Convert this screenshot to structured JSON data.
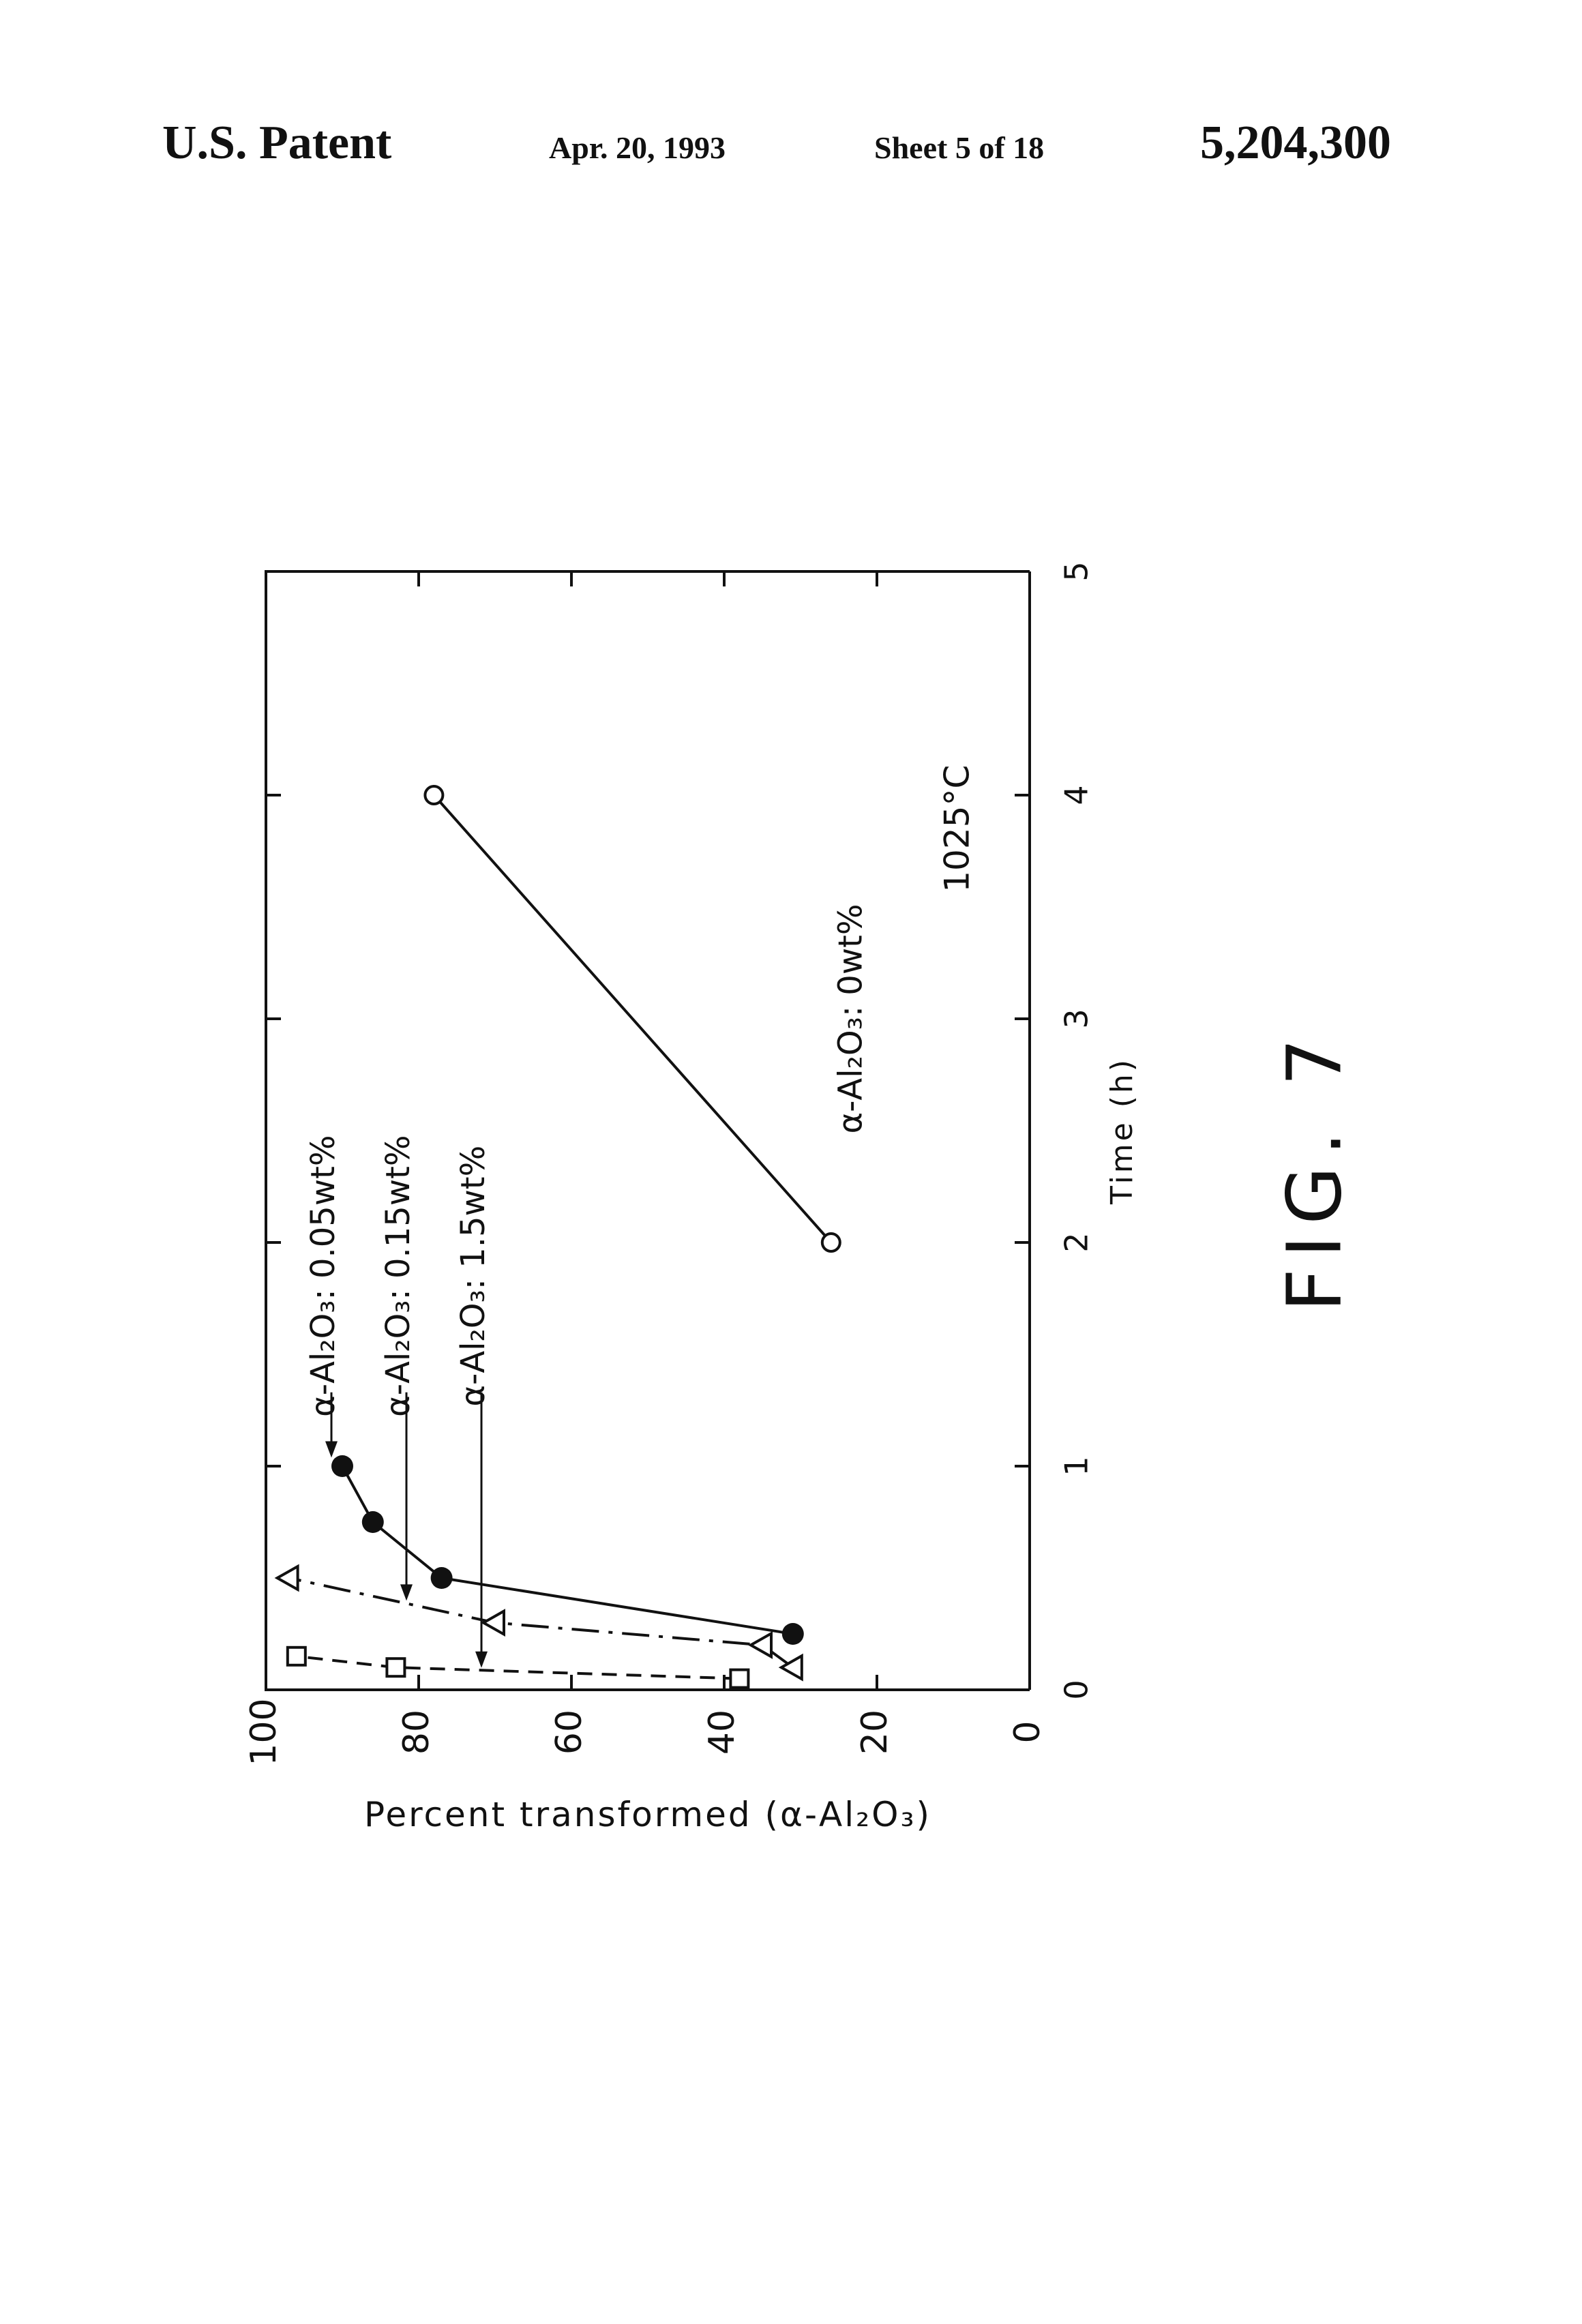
{
  "header": {
    "patent_label": "U.S. Patent",
    "date": "Apr. 20, 1993",
    "sheet": "Sheet 5 of 18",
    "patent_number": "5,204,300"
  },
  "figure_label": "FIG. 7",
  "chart_data": {
    "type": "line",
    "orientation": "rotated 90° counter-clockwise on the page",
    "xlabel": "Time (h)",
    "ylabel": "Percent transformed (α-Al₂O₃)",
    "xlim": [
      0,
      5
    ],
    "ylim": [
      0,
      100
    ],
    "x_ticks": [
      "0",
      "1",
      "2",
      "3",
      "4",
      "5"
    ],
    "y_ticks": [
      "0",
      "20",
      "40",
      "60",
      "80",
      "100"
    ],
    "annotation": "1025°C",
    "series": [
      {
        "name": "α-Al₂O₃: 0wt%",
        "marker": "open-circle",
        "line": "solid",
        "points": [
          [
            2.0,
            26
          ],
          [
            4.0,
            78
          ]
        ]
      },
      {
        "name": "α-Al₂O₃: 0.05wt%",
        "marker": "filled-circle",
        "line": "solid",
        "points": [
          [
            0.25,
            31
          ],
          [
            0.5,
            77
          ],
          [
            0.75,
            86
          ],
          [
            1.0,
            90
          ]
        ]
      },
      {
        "name": "α-Al₂O₃: 0.15wt%",
        "marker": "open-triangle",
        "line": "dash-dot",
        "points": [
          [
            0.1,
            31
          ],
          [
            0.2,
            35
          ],
          [
            0.3,
            70
          ],
          [
            0.5,
            97
          ]
        ]
      },
      {
        "name": "α-Al₂O₃: 1.5wt%",
        "marker": "open-square",
        "line": "dashed",
        "points": [
          [
            0.05,
            38
          ],
          [
            0.1,
            83
          ],
          [
            0.15,
            96
          ]
        ]
      }
    ]
  }
}
